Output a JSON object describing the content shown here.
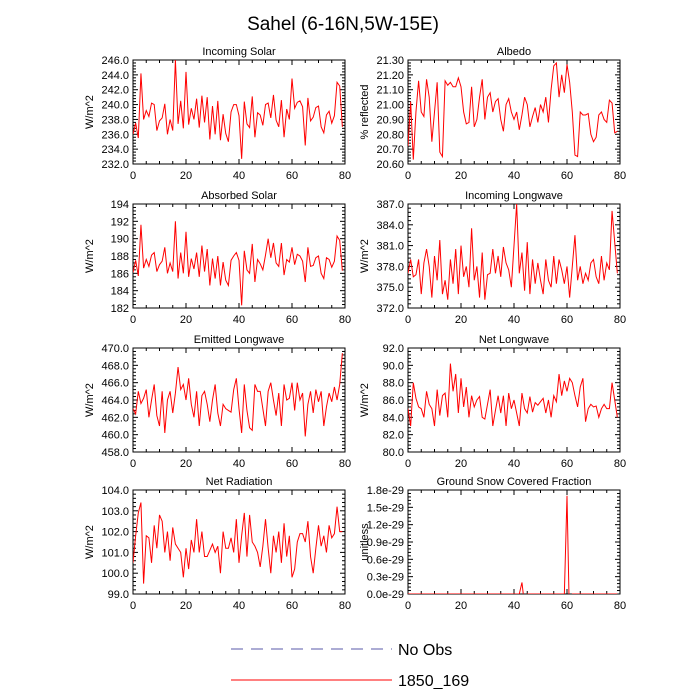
{
  "figure": {
    "title": "Sahel (6-16N,5W-15E)"
  },
  "legend": {
    "items": [
      {
        "label": "No Obs",
        "style": "dashed",
        "color": "#5a5aa8"
      },
      {
        "label": "1850_169",
        "style": "solid",
        "color": "#ff0000"
      }
    ]
  },
  "chart_data": [
    {
      "type": "line",
      "title": "Incoming Solar",
      "ylabel": "W/m^2",
      "xlim": [
        0,
        80
      ],
      "xticks": [
        0,
        20,
        40,
        60,
        80
      ],
      "ylim": [
        232,
        246
      ],
      "yticks": [
        232,
        234,
        236,
        238,
        240,
        242,
        244,
        246
      ],
      "ytick_decimals": 1,
      "series": [
        {
          "name": "1850_169",
          "color": "#ff0000",
          "x_start": 0,
          "values": [
            236.0,
            237.5,
            235.5,
            244.2,
            238.0,
            239.2,
            238.4,
            240.2,
            240.0,
            236.5,
            237.8,
            238.2,
            240.1,
            236.0,
            238.0,
            236.5,
            246.0,
            237.4,
            240.5,
            236.8,
            244.4,
            237.3,
            239.5,
            238.0,
            240.8,
            236.9,
            241.2,
            237.6,
            241.0,
            235.3,
            239.8,
            236.0,
            240.5,
            235.2,
            238.7,
            236.1,
            235.0,
            239.0,
            240.0,
            240.0,
            238.5,
            232.7,
            240.4,
            237.4,
            236.9,
            241.1,
            235.6,
            238.9,
            238.6,
            237.2,
            240.0,
            240.2,
            238.2,
            241.3,
            237.9,
            237.0,
            240.6,
            235.6,
            239.4,
            238.0,
            243.5,
            239.5,
            240.3,
            240.5,
            239.7,
            234.5,
            240.9,
            237.8,
            238.3,
            239.6,
            239.8,
            237.0,
            236.2,
            238.6,
            239.1,
            237.5,
            238.5,
            243.0,
            242.5,
            237.0
          ]
        }
      ]
    },
    {
      "type": "line",
      "title": "Albedo",
      "ylabel": "% reflected",
      "xlim": [
        0,
        80
      ],
      "xticks": [
        0,
        20,
        40,
        60,
        80
      ],
      "ylim": [
        20.6,
        21.3
      ],
      "yticks": [
        20.6,
        20.7,
        20.8,
        20.9,
        21.0,
        21.1,
        21.2,
        21.3
      ],
      "ytick_decimals": 2,
      "series": [
        {
          "name": "1850_169",
          "color": "#ff0000",
          "x_start": 0,
          "values": [
            20.72,
            21.02,
            20.63,
            20.95,
            21.16,
            20.95,
            20.92,
            21.17,
            21.05,
            20.75,
            20.95,
            21.15,
            20.68,
            20.65,
            21.16,
            21.13,
            21.15,
            21.12,
            21.12,
            21.18,
            21.12,
            20.95,
            20.87,
            20.88,
            21.12,
            20.85,
            20.9,
            21.05,
            21.17,
            20.9,
            21.05,
            21.08,
            20.95,
            21.02,
            21.04,
            20.9,
            20.82,
            21.0,
            21.04,
            20.95,
            20.9,
            20.95,
            20.83,
            20.93,
            21.05,
            21.0,
            20.85,
            20.92,
            20.98,
            20.88,
            21.0,
            20.95,
            21.05,
            20.88,
            21.1,
            21.26,
            21.28,
            21.05,
            21.2,
            21.08,
            21.27,
            21.15,
            20.95,
            20.66,
            20.65,
            20.95,
            20.93,
            20.93,
            20.94,
            20.8,
            20.75,
            20.78,
            20.93,
            20.95,
            20.9,
            20.88,
            21.03,
            21.01,
            20.81,
            20.82
          ]
        }
      ]
    },
    {
      "type": "line",
      "title": "Absorbed Solar",
      "ylabel": "W/m^2",
      "xlim": [
        0,
        80
      ],
      "xticks": [
        0,
        20,
        40,
        60,
        80
      ],
      "ylim": [
        182,
        194
      ],
      "yticks": [
        182,
        184,
        186,
        188,
        190,
        192,
        194
      ],
      "ytick_decimals": 0,
      "series": [
        {
          "name": "1850_169",
          "color": "#ff0000",
          "x_start": 0,
          "values": [
            186.1,
            187.5,
            185.7,
            191.6,
            186.6,
            187.6,
            186.8,
            188.1,
            188.4,
            186.2,
            187.0,
            187.4,
            189.0,
            186.0,
            187.2,
            186.2,
            192.0,
            185.4,
            188.4,
            186.0,
            190.8,
            185.6,
            187.7,
            186.5,
            188.4,
            185.6,
            189.2,
            186.2,
            188.8,
            184.6,
            187.7,
            185.4,
            188.0,
            184.6,
            187.3,
            185.2,
            184.6,
            187.5,
            188.0,
            188.4,
            187.5,
            182.3,
            188.6,
            186.4,
            186.0,
            189.4,
            185.0,
            187.6,
            187.1,
            186.4,
            188.1,
            190.0,
            187.8,
            189.5,
            187.2,
            186.8,
            189.5,
            185.8,
            187.6,
            187.3,
            189.0,
            187.0,
            188.2,
            188.0,
            187.4,
            185.0,
            189.0,
            186.8,
            186.9,
            187.8,
            188.0,
            186.0,
            185.4,
            187.8,
            187.6,
            186.7,
            187.4,
            190.3,
            189.8,
            186.3
          ]
        }
      ]
    },
    {
      "type": "line",
      "title": "Incoming Longwave",
      "ylabel": "W/m^2",
      "xlim": [
        0,
        80
      ],
      "xticks": [
        0,
        20,
        40,
        60,
        80
      ],
      "ylim": [
        372,
        387
      ],
      "yticks": [
        372,
        375,
        378,
        381,
        384,
        387
      ],
      "ytick_decimals": 1,
      "series": [
        {
          "name": "1850_169",
          "color": "#ff0000",
          "x_start": 0,
          "values": [
            377.0,
            379.0,
            376.5,
            376.8,
            379.0,
            374.0,
            378.5,
            380.5,
            378.0,
            373.5,
            379.5,
            376.0,
            381.8,
            374.0,
            376.0,
            373.2,
            379.0,
            375.5,
            380.5,
            374.0,
            381.0,
            376.5,
            378.0,
            375.0,
            383.5,
            376.0,
            378.0,
            373.5,
            380.0,
            373.2,
            376.8,
            377.0,
            380.5,
            377.0,
            379.5,
            376.5,
            380.8,
            378.5,
            377.5,
            375.0,
            381.0,
            387.0,
            377.0,
            380.0,
            374.5,
            381.5,
            374.0,
            379.0,
            375.5,
            378.5,
            376.0,
            374.0,
            379.0,
            376.0,
            375.0,
            379.5,
            375.5,
            379.0,
            377.5,
            375.5,
            378.0,
            373.5,
            378.0,
            382.5,
            376.0,
            378.0,
            375.5,
            377.0,
            376.0,
            378.5,
            379.0,
            376.5,
            375.5,
            379.5,
            376.0,
            378.5,
            377.5,
            386.0,
            381.5,
            377.0
          ]
        }
      ]
    },
    {
      "type": "line",
      "title": "Emitted Longwave",
      "ylabel": "W/m^2",
      "xlim": [
        0,
        80
      ],
      "xticks": [
        0,
        20,
        40,
        60,
        80
      ],
      "ylim": [
        458,
        470
      ],
      "yticks": [
        458,
        460,
        462,
        464,
        466,
        468,
        470
      ],
      "ytick_decimals": 1,
      "series": [
        {
          "name": "1850_169",
          "color": "#ff0000",
          "x_start": 0,
          "values": [
            463.0,
            462.4,
            465.0,
            463.6,
            464.2,
            465.2,
            462.0,
            464.0,
            465.8,
            462.2,
            461.0,
            465.0,
            460.2,
            464.0,
            465.0,
            462.5,
            464.8,
            467.8,
            465.2,
            465.8,
            464.0,
            466.5,
            463.5,
            462.0,
            465.0,
            461.0,
            464.5,
            465.0,
            463.5,
            461.5,
            464.0,
            465.8,
            462.5,
            461.0,
            463.5,
            463.0,
            462.8,
            462.6,
            465.2,
            466.5,
            463.0,
            460.2,
            465.8,
            462.8,
            460.8,
            460.5,
            465.8,
            465.0,
            465.0,
            463.0,
            461.0,
            465.0,
            466.0,
            464.0,
            462.2,
            464.8,
            461.0,
            465.8,
            464.0,
            464.2,
            466.0,
            462.8,
            466.0,
            464.0,
            464.8,
            459.8,
            463.5,
            465.0,
            462.5,
            465.2,
            463.8,
            465.0,
            461.0,
            463.2,
            464.8,
            463.8,
            465.5,
            464.0,
            465.8,
            469.4
          ]
        }
      ]
    },
    {
      "type": "line",
      "title": "Net Longwave",
      "ylabel": "W/m^2",
      "xlim": [
        0,
        80
      ],
      "xticks": [
        0,
        20,
        40,
        60,
        80
      ],
      "ylim": [
        80,
        92
      ],
      "yticks": [
        80,
        82,
        84,
        86,
        88,
        90,
        92
      ],
      "ytick_decimals": 1,
      "series": [
        {
          "name": "1850_169",
          "color": "#ff0000",
          "x_start": 0,
          "values": [
            85.0,
            83.0,
            88.0,
            86.2,
            85.2,
            85.0,
            84.0,
            87.0,
            85.5,
            85.0,
            83.0,
            87.2,
            84.2,
            86.5,
            86.8,
            84.0,
            90.2,
            87.0,
            89.0,
            84.5,
            88.5,
            85.2,
            87.5,
            84.0,
            86.5,
            85.2,
            86.0,
            86.4,
            84.0,
            83.8,
            85.5,
            87.2,
            83.0,
            84.8,
            86.5,
            84.5,
            86.5,
            83.0,
            86.8,
            85.0,
            86.0,
            84.5,
            83.0,
            86.8,
            85.0,
            84.5,
            86.4,
            84.6,
            85.7,
            85.4,
            85.8,
            86.2,
            84.5,
            86.0,
            84.0,
            86.5,
            85.8,
            89.0,
            86.5,
            88.2,
            87.0,
            88.5,
            88.0,
            86.5,
            85.2,
            87.5,
            88.5,
            83.5,
            85.0,
            85.5,
            85.2,
            85.3,
            84.0,
            85.0,
            85.5,
            85.0,
            85.0,
            88.0,
            86.0,
            84.0
          ]
        }
      ]
    },
    {
      "type": "line",
      "title": "Net Radiation",
      "ylabel": "W/m^2",
      "xlim": [
        0,
        80
      ],
      "xticks": [
        0,
        20,
        40,
        60,
        80
      ],
      "ylim": [
        99,
        104
      ],
      "yticks": [
        99,
        100,
        101,
        102,
        103,
        104
      ],
      "ytick_decimals": 1,
      "series": [
        {
          "name": "1850_169",
          "color": "#ff0000",
          "x_start": 0,
          "values": [
            100.5,
            101.8,
            102.9,
            103.4,
            99.5,
            101.8,
            101.7,
            100.5,
            102.3,
            101.2,
            102.8,
            102.5,
            101.0,
            102.0,
            100.6,
            102.2,
            101.4,
            101.2,
            101.0,
            99.8,
            101.2,
            100.2,
            101.6,
            101.0,
            102.6,
            101.0,
            102.0,
            100.8,
            100.8,
            101.1,
            101.4,
            101.0,
            101.3,
            100.0,
            102.0,
            101.2,
            101.2,
            101.7,
            101.0,
            102.6,
            100.5,
            101.8,
            102.9,
            100.8,
            102.8,
            101.5,
            101.3,
            101.0,
            100.3,
            101.3,
            102.6,
            101.2,
            100.0,
            101.8,
            101.0,
            102.0,
            100.5,
            102.4,
            100.8,
            101.8,
            99.8,
            100.2,
            101.5,
            101.9,
            101.9,
            101.5,
            102.5,
            100.8,
            100.0,
            101.2,
            102.3,
            101.3,
            101.8,
            101.0,
            102.3,
            101.7,
            101.9,
            103.2,
            102.0,
            102.0
          ]
        }
      ]
    },
    {
      "type": "line",
      "title": "Ground Snow Covered Fraction",
      "ylabel": "unitless",
      "xlim": [
        0,
        80
      ],
      "xticks": [
        0,
        20,
        40,
        60,
        80
      ],
      "ylim": [
        0,
        1.8e-29
      ],
      "ytick_labels": [
        "0.0e-29",
        "0.3e-29",
        "0.6e-29",
        "0.9e-29",
        "1.2e-29",
        "1.5e-29",
        "1.8e-29"
      ],
      "yticks": [
        0,
        3e-30,
        6e-30,
        9e-30,
        1.2e-29,
        1.5e-29,
        1.8e-29
      ],
      "series": [
        {
          "name": "1850_169",
          "color": "#ff0000",
          "x_start": 0,
          "values": [
            0,
            0,
            0,
            0,
            0,
            0,
            0,
            0,
            0,
            0,
            0,
            0,
            0,
            0,
            0,
            0,
            0,
            0,
            0,
            0,
            0,
            0,
            0,
            0,
            0,
            0,
            0,
            0,
            0,
            0,
            0,
            0,
            0,
            0,
            0,
            0,
            0,
            0,
            0,
            0,
            0,
            0,
            0,
            2e-30,
            -2e-30,
            0,
            0,
            0,
            0,
            0,
            0,
            0,
            0,
            0,
            0,
            0,
            0,
            0,
            0,
            0,
            1.7e-29,
            -6e-30,
            0,
            0,
            0,
            0,
            0,
            0,
            0,
            0,
            0,
            0,
            0,
            0,
            0,
            0,
            0,
            0,
            0,
            0
          ]
        }
      ]
    }
  ]
}
